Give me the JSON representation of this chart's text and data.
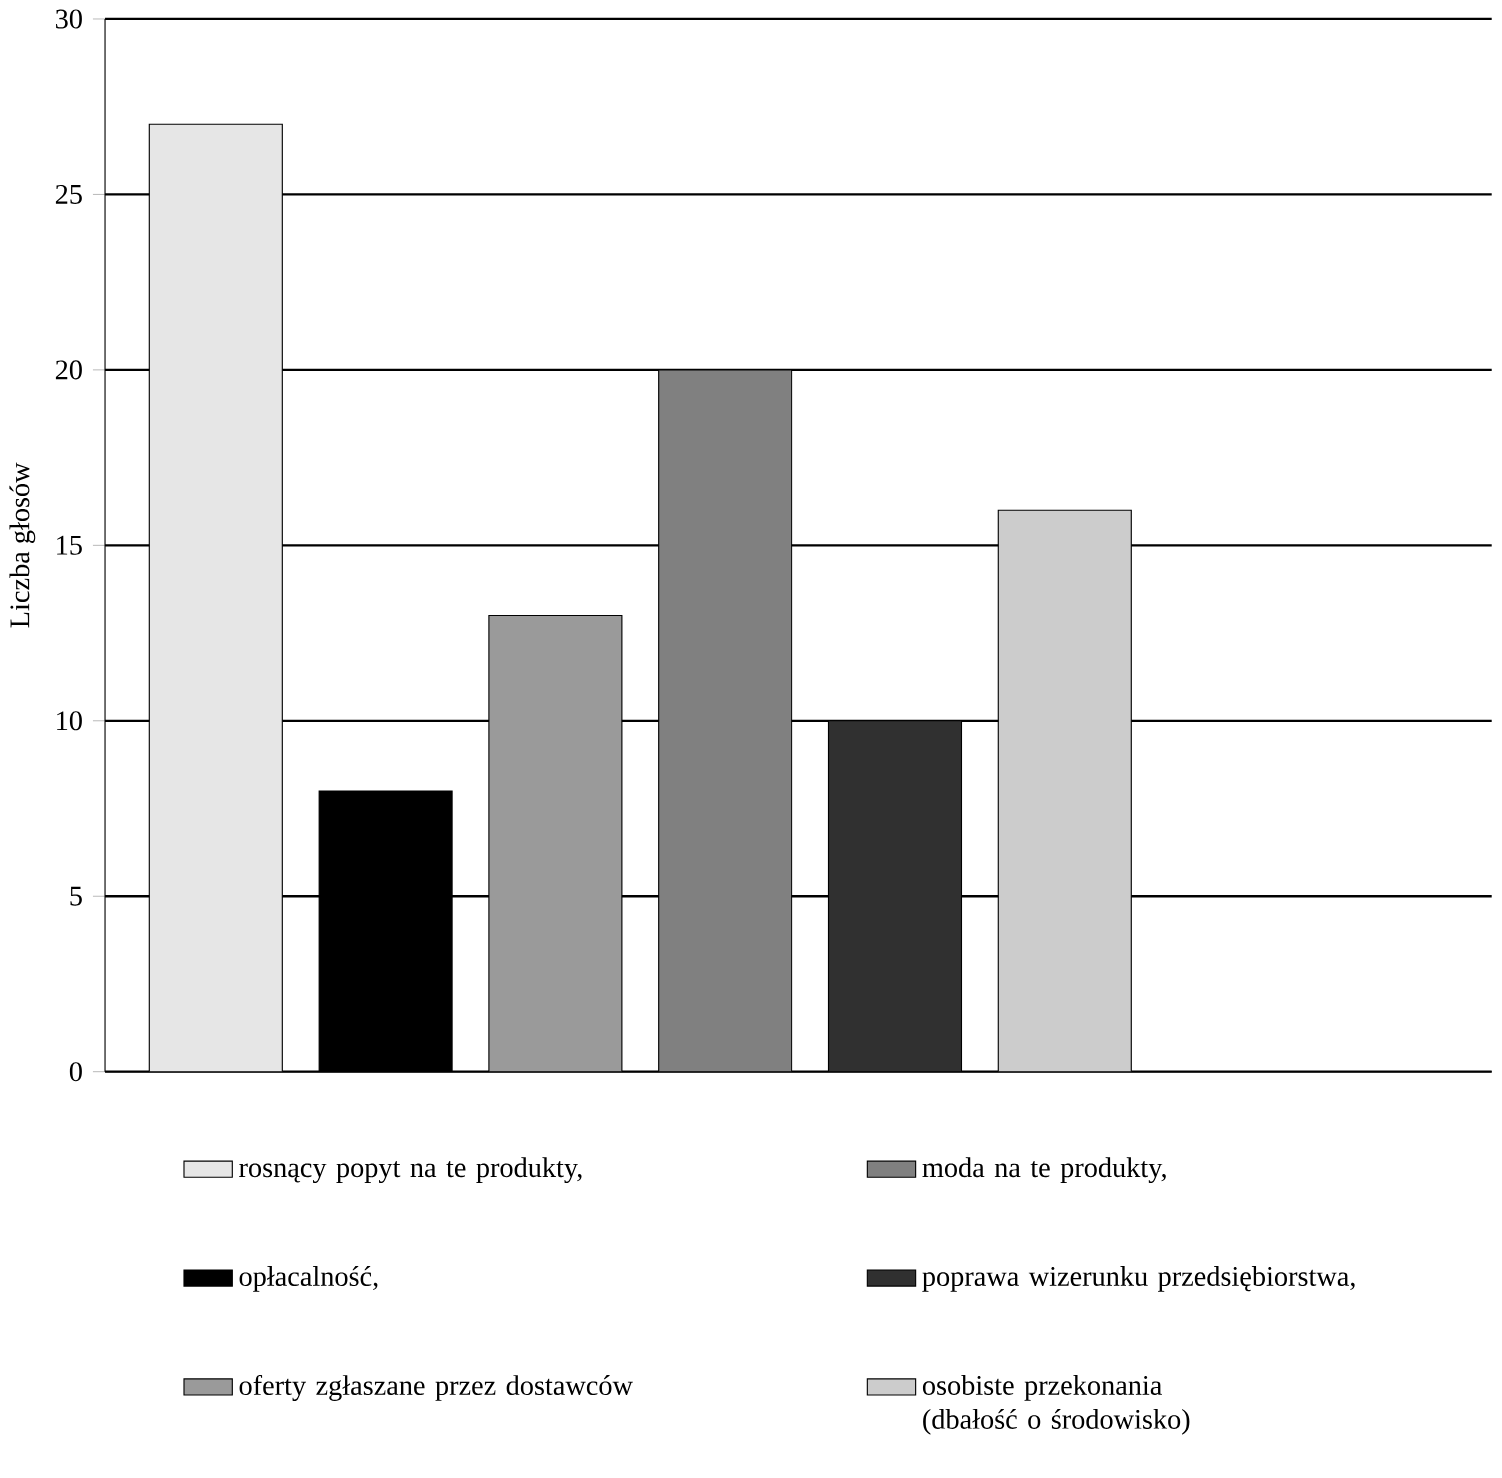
{
  "chart_data": {
    "type": "bar",
    "ylabel": "Liczba głosów",
    "categories": [
      null
    ],
    "tick_labels": "y",
    "ylim": [
      0,
      30
    ],
    "yticks": [
      0,
      5,
      10,
      15,
      20,
      25,
      30
    ],
    "grid": "y",
    "legend": "bottom",
    "series": [
      {
        "name": "rosnący popyt na te produkty,",
        "color": "#e6e6e6",
        "values": [
          27
        ]
      },
      {
        "name": "opłacalność,",
        "color": "#000000",
        "values": [
          8
        ]
      },
      {
        "name": "oferty zgłaszane przez dostawców",
        "color": "#9a9a9a",
        "values": [
          13
        ]
      },
      {
        "name": "moda na te produkty,",
        "color": "#808080",
        "values": [
          20
        ]
      },
      {
        "name": "poprawa wizerunku przedsiębiorstwa,",
        "color": "#303030",
        "values": [
          10
        ]
      },
      {
        "name": "osobiste przekonania (dbałość o środowisko)",
        "color": "#cccccc",
        "values": [
          16
        ]
      }
    ]
  }
}
